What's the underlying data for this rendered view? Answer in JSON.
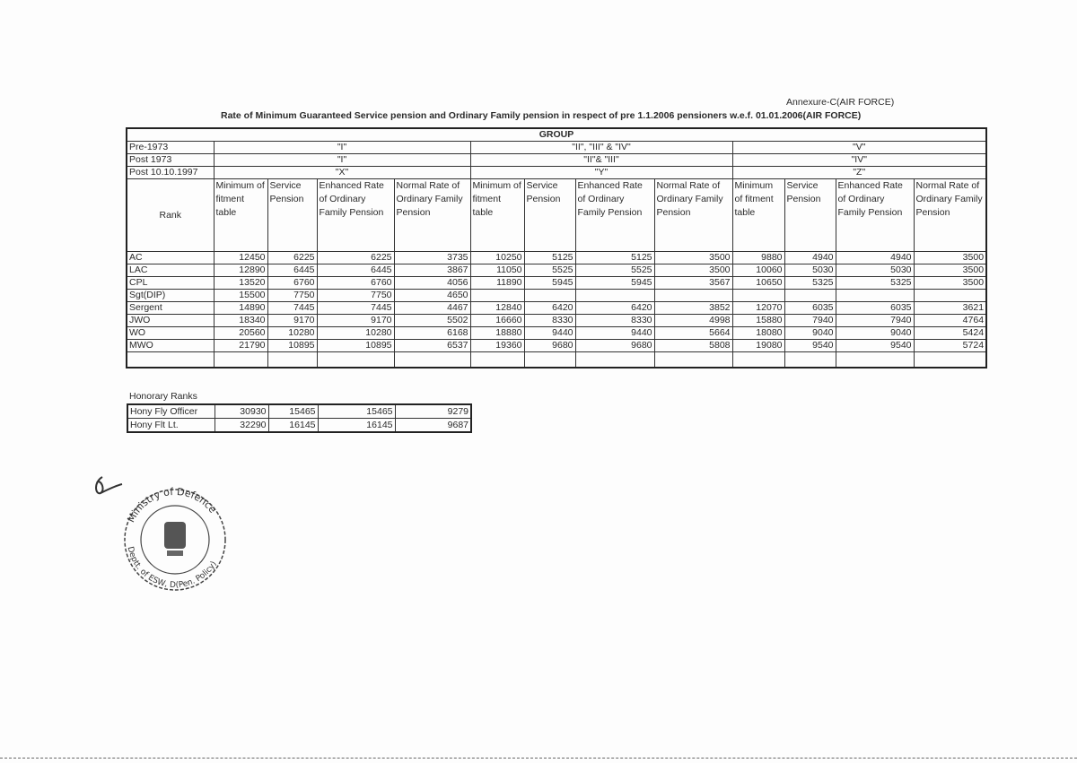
{
  "annexure": "Annexure-C(AIR FORCE)",
  "title": "Rate of Minimum Guaranteed Service pension and Ordinary Family  pension in respect of pre 1.1.2006 pensioners w.e.f. 01.01.2006(AIR FORCE)",
  "group_label": "GROUP",
  "period_rows": [
    {
      "label": "Pre-1973",
      "groups": [
        "\"I\"",
        "\"II\", \"III\" & \"IV\"",
        "\"V\""
      ]
    },
    {
      "label": "Post 1973",
      "groups": [
        "\"I\"",
        "\"II\"& \"III\"",
        "\"IV\""
      ]
    },
    {
      "label": "Post 10.10.1997",
      "groups": [
        "\"X\"",
        "\"Y\"",
        "\"Z\""
      ]
    }
  ],
  "rank_header": "Rank",
  "column_headers": [
    "Minimum of fitment table",
    "Service Pension",
    "Enhanced Rate of Ordinary Family Pension",
    "Normal Rate of Ordinary Family Pension",
    "Minimum of fitment table",
    "Service Pension",
    "Enhanced Rate of Ordinary Family Pension",
    "Normal Rate of Ordinary Family Pension",
    "Minimum of fitment table",
    "Service Pension",
    "Enhanced Rate of Ordinary Family Pension",
    "Normal Rate of Ordinary Family Pension"
  ],
  "rows": [
    {
      "rank": "AC",
      "values": [
        "12450",
        "6225",
        "6225",
        "3735",
        "10250",
        "5125",
        "5125",
        "3500",
        "9880",
        "4940",
        "4940",
        "3500"
      ]
    },
    {
      "rank": "LAC",
      "values": [
        "12890",
        "6445",
        "6445",
        "3867",
        "11050",
        "5525",
        "5525",
        "3500",
        "10060",
        "5030",
        "5030",
        "3500"
      ]
    },
    {
      "rank": "CPL",
      "values": [
        "13520",
        "6760",
        "6760",
        "4056",
        "11890",
        "5945",
        "5945",
        "3567",
        "10650",
        "5325",
        "5325",
        "3500"
      ]
    },
    {
      "rank": "Sgt(DIP)",
      "values": [
        "15500",
        "7750",
        "7750",
        "4650",
        "",
        "",
        "",
        "",
        "",
        "",
        "",
        ""
      ]
    },
    {
      "rank": "Sergent",
      "values": [
        "14890",
        "7445",
        "7445",
        "4467",
        "12840",
        "6420",
        "6420",
        "3852",
        "12070",
        "6035",
        "6035",
        "3621"
      ]
    },
    {
      "rank": "JWO",
      "values": [
        "18340",
        "9170",
        "9170",
        "5502",
        "16660",
        "8330",
        "8330",
        "4998",
        "15880",
        "7940",
        "7940",
        "4764"
      ]
    },
    {
      "rank": "WO",
      "values": [
        "20560",
        "10280",
        "10280",
        "6168",
        "18880",
        "9440",
        "9440",
        "5664",
        "18080",
        "9040",
        "9040",
        "5424"
      ]
    },
    {
      "rank": "MWO",
      "values": [
        "21790",
        "10895",
        "10895",
        "6537",
        "19360",
        "9680",
        "9680",
        "5808",
        "19080",
        "9540",
        "9540",
        "5724"
      ]
    }
  ],
  "honorary": {
    "label": "Honorary Ranks",
    "rows": [
      {
        "rank": "Hony Fly Officer",
        "values": [
          "30930",
          "15465",
          "15465",
          "9279"
        ]
      },
      {
        "rank": "Hony Flt Lt.",
        "values": [
          "32290",
          "16145",
          "16145",
          "9687"
        ]
      }
    ]
  },
  "stamp": {
    "text_top": "Ministry of Defence",
    "text_bottom": "Deptt. of ESW, D(Pen. Policy)"
  }
}
